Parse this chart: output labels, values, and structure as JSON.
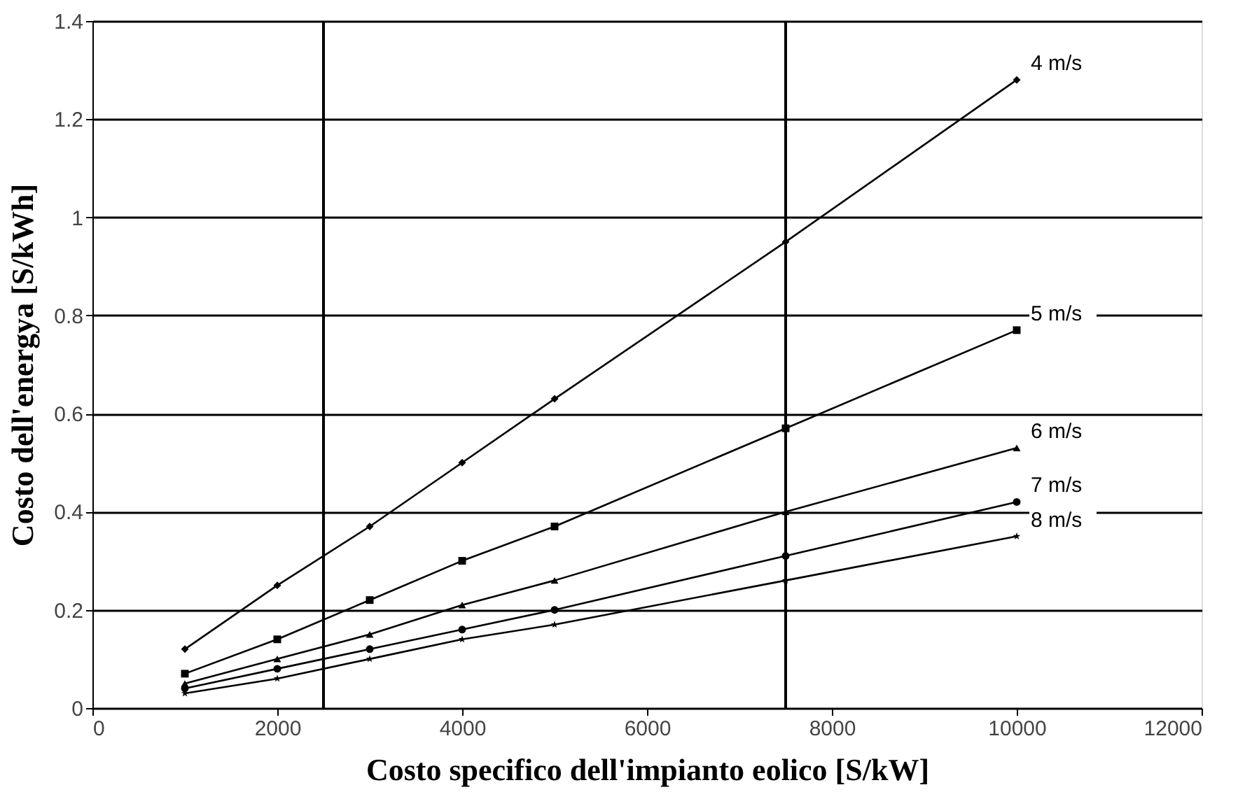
{
  "chart_data": {
    "type": "line",
    "xlabel": "Costo specifico dell'impianto eolico [S/kW]",
    "ylabel": "Costo dell'energya [S/kWh]",
    "x": [
      1000,
      2000,
      3000,
      4000,
      5000,
      7500,
      10000
    ],
    "series": [
      {
        "name": "4 m/s",
        "color": "#000000",
        "marker": "diamond",
        "values": [
          0.12,
          0.25,
          0.37,
          0.5,
          0.63,
          0.95,
          1.28
        ]
      },
      {
        "name": "5 m/s",
        "color": "#000000",
        "marker": "square",
        "values": [
          0.07,
          0.14,
          0.22,
          0.3,
          0.37,
          0.57,
          0.77
        ]
      },
      {
        "name": "6 m/s",
        "color": "#000000",
        "marker": "triangle",
        "values": [
          0.05,
          0.1,
          0.15,
          0.21,
          0.26,
          0.4,
          0.53
        ]
      },
      {
        "name": "7 m/s",
        "color": "#000000",
        "marker": "circle",
        "values": [
          0.04,
          0.08,
          0.12,
          0.16,
          0.2,
          0.31,
          0.42
        ]
      },
      {
        "name": "8 m/s",
        "color": "#000000",
        "marker": "star",
        "values": [
          0.03,
          0.06,
          0.1,
          0.14,
          0.17,
          0.26,
          0.35
        ]
      }
    ],
    "xlim": [
      0,
      12000
    ],
    "xticks": [
      0,
      2000,
      4000,
      6000,
      8000,
      10000,
      12000
    ],
    "ylim": [
      0,
      1.4
    ],
    "yticks": [
      0,
      0.2,
      0.4,
      0.6,
      0.8,
      1,
      1.2,
      1.4
    ],
    "grid": "y",
    "legend": false,
    "line_style": "solid",
    "ref_lines": [
      {
        "axis": "x",
        "value": 2500,
        "color": "#000000"
      },
      {
        "axis": "x",
        "value": 7500,
        "color": "#000000"
      }
    ]
  }
}
